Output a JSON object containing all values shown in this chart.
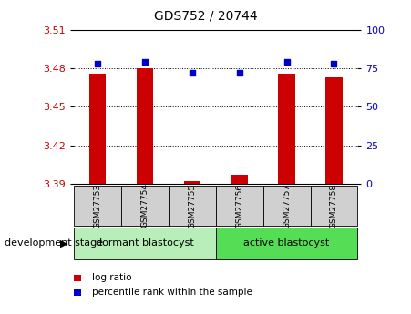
{
  "title": "GDS752 / 20744",
  "samples": [
    "GSM27753",
    "GSM27754",
    "GSM27755",
    "GSM27756",
    "GSM27757",
    "GSM27758"
  ],
  "log_ratio": [
    3.476,
    3.48,
    3.392,
    3.397,
    3.476,
    3.473
  ],
  "percentile_rank": [
    78,
    79,
    72,
    72,
    79,
    78
  ],
  "ylim_left": [
    3.39,
    3.51
  ],
  "ylim_right": [
    0,
    100
  ],
  "yticks_left": [
    3.39,
    3.42,
    3.45,
    3.48,
    3.51
  ],
  "yticks_right": [
    0,
    25,
    50,
    75,
    100
  ],
  "groups": [
    {
      "label": "dormant blastocyst",
      "indices": [
        0,
        1,
        2
      ],
      "color": "#b8eeb8"
    },
    {
      "label": "active blastocyst",
      "indices": [
        3,
        4,
        5
      ],
      "color": "#55dd55"
    }
  ],
  "bar_color": "#cc0000",
  "dot_color": "#0000cc",
  "bar_width": 0.35,
  "baseline": 3.39,
  "tick_box_color": "#d0d0d0",
  "left_axis_color": "#cc0000",
  "right_axis_color": "#0000cc",
  "dev_stage_label": "development stage",
  "legend_log_ratio": "log ratio",
  "legend_percentile": "percentile rank within the sample",
  "grid_ticks": [
    3.42,
    3.45,
    3.48
  ],
  "title_fontsize": 10,
  "axis_fontsize": 8,
  "sample_fontsize": 6.5,
  "group_fontsize": 8,
  "legend_fontsize": 7.5
}
